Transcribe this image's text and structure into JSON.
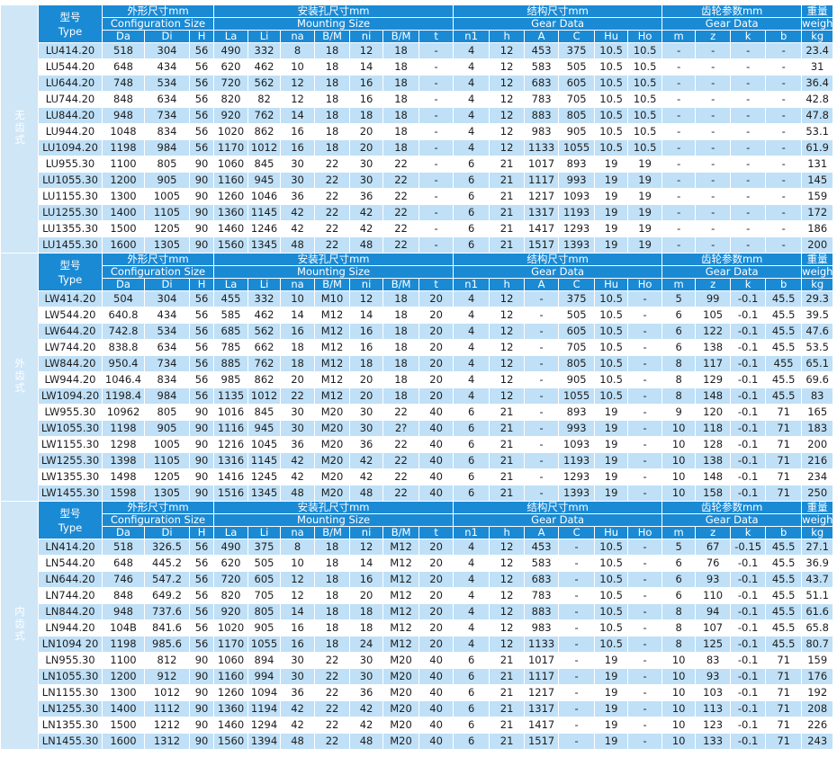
{
  "header": {
    "type": {
      "zh": "型号",
      "en": "Type"
    },
    "groups": [
      {
        "zh": "外形尺寸mm",
        "en": "Configuration Size",
        "cols": [
          "Da",
          "Di",
          "H"
        ]
      },
      {
        "zh": "安装孔尺寸mm",
        "en": "Mounting Size",
        "cols": [
          "La",
          "Li",
          "na",
          "B/M",
          "ni",
          "B/M",
          "t"
        ]
      },
      {
        "zh": "结构尺寸mm",
        "en": "Gear Data",
        "cols": [
          "n1",
          "h",
          "A",
          "C",
          "Hu",
          "Ho"
        ]
      },
      {
        "zh": "齿轮参数mm",
        "en": "Gear Data",
        "cols": [
          "m",
          "z",
          "k",
          "b"
        ]
      }
    ],
    "weight": {
      "zh": "重量",
      "en": "weight",
      "unit": "kg"
    }
  },
  "sections": [
    {
      "label": "无齿式",
      "rows": [
        [
          "LU414.20",
          "518",
          "304",
          "56",
          "490",
          "332",
          "8",
          "18",
          "12",
          "18",
          "-",
          "4",
          "12",
          "453",
          "375",
          "10.5",
          "10.5",
          "-",
          "-",
          "-",
          "-",
          "23.4"
        ],
        [
          "LU544.20",
          "648",
          "434",
          "56",
          "620",
          "462",
          "10",
          "18",
          "14",
          "18",
          "-",
          "4",
          "12",
          "583",
          "505",
          "10.5",
          "10.5",
          "-",
          "-",
          "-",
          "-",
          "31"
        ],
        [
          "LU644.20",
          "748",
          "534",
          "56",
          "720",
          "562",
          "12",
          "18",
          "16",
          "18",
          "-",
          "4",
          "12",
          "683",
          "605",
          "10.5",
          "10.5",
          "-",
          "-",
          "-",
          "-",
          "36.4"
        ],
        [
          "LU744.20",
          "848",
          "634",
          "56",
          "820",
          "82",
          "12",
          "18",
          "16",
          "18",
          "-",
          "4",
          "12",
          "783",
          "705",
          "10.5",
          "10.5",
          "-",
          "-",
          "-",
          "-",
          "42.8"
        ],
        [
          "LU844.20",
          "948",
          "734",
          "56",
          "920",
          "762",
          "14",
          "18",
          "18",
          "18",
          "-",
          "4",
          "12",
          "883",
          "805",
          "10.5",
          "10.5",
          "-",
          "-",
          "-",
          "-",
          "47.8"
        ],
        [
          "LU944.20",
          "1048",
          "834",
          "56",
          "1020",
          "862",
          "16",
          "18",
          "20",
          "18",
          "-",
          "4",
          "12",
          "983",
          "905",
          "10.5",
          "10.5",
          "-",
          "-",
          "-",
          "-",
          "53.1"
        ],
        [
          "LU1094.20",
          "1198",
          "984",
          "56",
          "1170",
          "1012",
          "16",
          "18",
          "20",
          "18",
          "-",
          "4",
          "12",
          "1133",
          "1055",
          "10.5",
          "10.5",
          "-",
          "-",
          "-",
          "-",
          "61.9"
        ],
        [
          "LU955.30",
          "1100",
          "805",
          "90",
          "1060",
          "845",
          "30",
          "22",
          "30",
          "22",
          "-",
          "6",
          "21",
          "1017",
          "893",
          "19",
          "19",
          "-",
          "-",
          "-",
          "-",
          "131"
        ],
        [
          "LU1055.30",
          "1200",
          "905",
          "90",
          "1160",
          "945",
          "30",
          "22",
          "30",
          "22",
          "-",
          "6",
          "21",
          "1117",
          "993",
          "19",
          "19",
          "-",
          "-",
          "-",
          "-",
          "145"
        ],
        [
          "LU1155.30",
          "1300",
          "1005",
          "90",
          "1260",
          "1046",
          "36",
          "22",
          "36",
          "22",
          "-",
          "6",
          "21",
          "1217",
          "1093",
          "19",
          "19",
          "-",
          "-",
          "-",
          "-",
          "159"
        ],
        [
          "LU1255.30",
          "1400",
          "1105",
          "90",
          "1360",
          "1145",
          "42",
          "22",
          "42",
          "22",
          "-",
          "6",
          "21",
          "1317",
          "1193",
          "19",
          "19",
          "-",
          "-",
          "-",
          "-",
          "172"
        ],
        [
          "LU1355.30",
          "1500",
          "1205",
          "90",
          "1460",
          "1246",
          "42",
          "22",
          "42",
          "22",
          "-",
          "6",
          "21",
          "1417",
          "1293",
          "19",
          "19",
          "-",
          "-",
          "-",
          "-",
          "186"
        ],
        [
          "LU1455.30",
          "1600",
          "1305",
          "90",
          "1560",
          "1345",
          "48",
          "22",
          "48",
          "22",
          "-",
          "6",
          "21",
          "1517",
          "1393",
          "19",
          "19",
          "-",
          "-",
          "-",
          "-",
          "200"
        ]
      ]
    },
    {
      "label": "外齿式",
      "rows": [
        [
          "LW414.20",
          "504",
          "304",
          "56",
          "455",
          "332",
          "10",
          "M10",
          "12",
          "18",
          "20",
          "4",
          "12",
          "-",
          "375",
          "10.5",
          "-",
          "5",
          "99",
          "-0.1",
          "45.5",
          "29.3"
        ],
        [
          "LW544.20",
          "640.8",
          "434",
          "56",
          "585",
          "462",
          "14",
          "M12",
          "14",
          "18",
          "20",
          "4",
          "12",
          "-",
          "505",
          "10.5",
          "-",
          "6",
          "105",
          "-0.1",
          "45.5",
          "39.5"
        ],
        [
          "LW644.20",
          "742.8",
          "534",
          "56",
          "685",
          "562",
          "16",
          "M12",
          "16",
          "18",
          "20",
          "4",
          "12",
          "-",
          "605",
          "10.5",
          "-",
          "6",
          "122",
          "-0.1",
          "45.5",
          "47.6"
        ],
        [
          "LW744.20",
          "838.8",
          "634",
          "56",
          "785",
          "662",
          "18",
          "M12",
          "16",
          "18",
          "20",
          "4",
          "12",
          "-",
          "705",
          "10.5",
          "-",
          "6",
          "138",
          "-0.1",
          "45.5",
          "53.5"
        ],
        [
          "LW844.20",
          "950.4",
          "734",
          "56",
          "885",
          "762",
          "18",
          "M12",
          "18",
          "18",
          "20",
          "4",
          "12",
          "-",
          "805",
          "10.5",
          "-",
          "8",
          "117",
          "-0.1",
          "455",
          "65.1"
        ],
        [
          "LW944.20",
          "1046.4",
          "834",
          "56",
          "985",
          "862",
          "20",
          "M12",
          "20",
          "18",
          "20",
          "4",
          "12",
          "-",
          "905",
          "10.5",
          "-",
          "8",
          "129",
          "-0.1",
          "45.5",
          "69.6"
        ],
        [
          "LW1094.20",
          "1198.4",
          "984",
          "56",
          "1135",
          "1012",
          "22",
          "M12",
          "20",
          "18",
          "20",
          "4",
          "12",
          "-",
          "1055",
          "10.5",
          "-",
          "8",
          "148",
          "-0.1",
          "45.5",
          "83"
        ],
        [
          "LW955.30",
          "10962",
          "805",
          "90",
          "1016",
          "845",
          "30",
          "M20",
          "30",
          "22",
          "40",
          "6",
          "21",
          "-",
          "893",
          "19",
          "-",
          "9",
          "120",
          "-0.1",
          "71",
          "165"
        ],
        [
          "LW1055.30",
          "1198",
          "905",
          "90",
          "1116",
          "945",
          "30",
          "M20",
          "30",
          "2?",
          "40",
          "6",
          "21",
          "-",
          "993",
          "19",
          "-",
          "10",
          "118",
          "-0.1",
          "71",
          "183"
        ],
        [
          "LW1155.30",
          "1298",
          "1005",
          "90",
          "1216",
          "1045",
          "36",
          "M20",
          "36",
          "22",
          "40",
          "6",
          "21",
          "-",
          "1093",
          "19",
          "-",
          "10",
          "128",
          "-0.1",
          "71",
          "200"
        ],
        [
          "LW1255.30",
          "1398",
          "1105",
          "90",
          "1316",
          "1145",
          "42",
          "M20",
          "42",
          "22",
          "40",
          "6",
          "21",
          "-",
          "1193",
          "19",
          "-",
          "10",
          "138",
          "-0.1",
          "71",
          "216"
        ],
        [
          "LW1355.30",
          "1498",
          "1205",
          "90",
          "1416",
          "1245",
          "42",
          "M20",
          "42",
          "22",
          "40",
          "6",
          "21",
          "-",
          "1293",
          "19",
          "-",
          "10",
          "148",
          "-0.1",
          "71",
          "234"
        ],
        [
          "LW1455.30",
          "1598",
          "1305",
          "90",
          "1516",
          "1345",
          "48",
          "M20",
          "48",
          "22",
          "40",
          "6",
          "21",
          "-",
          "1393",
          "19",
          "-",
          "10",
          "158",
          "-0.1",
          "71",
          "250"
        ]
      ]
    },
    {
      "label": "内齿式",
      "rows": [
        [
          "LN414.20",
          "518",
          "326.5",
          "56",
          "490",
          "375",
          "8",
          "18",
          "12",
          "M12",
          "20",
          "4",
          "12",
          "453",
          "-",
          "10.5",
          "-",
          "5",
          "67",
          "-0.15",
          "45.5",
          "27.1"
        ],
        [
          "LN544.20",
          "648",
          "445.2",
          "56",
          "620",
          "505",
          "10",
          "18",
          "14",
          "M12",
          "20",
          "4",
          "12",
          "583",
          "-",
          "10.5",
          "-",
          "6",
          "76",
          "-0.1",
          "45.5",
          "36.9"
        ],
        [
          "LN644.20",
          "746",
          "547.2",
          "56",
          "720",
          "605",
          "12",
          "18",
          "16",
          "M12",
          "20",
          "4",
          "12",
          "683",
          "-",
          "10.5",
          "-",
          "6",
          "93",
          "-0.1",
          "45.5",
          "43.7"
        ],
        [
          "LN744.20",
          "848",
          "649.2",
          "56",
          "820",
          "705",
          "12",
          "18",
          "20",
          "M12",
          "20",
          "4",
          "12",
          "783",
          "-",
          "10.5",
          "-",
          "6",
          "110",
          "-0.1",
          "45.5",
          "51.1"
        ],
        [
          "LN844.20",
          "948",
          "737.6",
          "56",
          "920",
          "805",
          "14",
          "18",
          "18",
          "M12",
          "20",
          "4",
          "12",
          "883",
          "-",
          "10.5",
          "-",
          "8",
          "94",
          "-0.1",
          "45.5",
          "61.6"
        ],
        [
          "LN944.20",
          "104B",
          "841.6",
          "56",
          "1020",
          "905",
          "16",
          "18",
          "18",
          "M12",
          "20",
          "4",
          "12",
          "983",
          "-",
          "10.5",
          "-",
          "8",
          "107",
          "-0.1",
          "45.5",
          "65.8"
        ],
        [
          "LN1094 20",
          "1198",
          "985.6",
          "56",
          "1170",
          "1055",
          "16",
          "18",
          "24",
          "M12",
          "20",
          "4",
          "12",
          "1133",
          "-",
          "10.5",
          "-",
          "8",
          "125",
          "-0.1",
          "45.5",
          "80.7"
        ],
        [
          "LN955.30",
          "1100",
          "812",
          "90",
          "1060",
          "894",
          "30",
          "22",
          "30",
          "M20",
          "40",
          "6",
          "21",
          "1017",
          "-",
          "19",
          "-",
          "10",
          "83",
          "-0.1",
          "71",
          "159"
        ],
        [
          "LN1055.30",
          "1200",
          "912",
          "90",
          "1160",
          "994",
          "30",
          "22",
          "30",
          "M20",
          "40",
          "6",
          "21",
          "1117",
          "-",
          "19",
          "-",
          "10",
          "93",
          "-0.1",
          "71",
          "176"
        ],
        [
          "LN1155.30",
          "1300",
          "1012",
          "90",
          "1260",
          "1094",
          "36",
          "22",
          "36",
          "M20",
          "40",
          "6",
          "21",
          "1217",
          "-",
          "19",
          "-",
          "10",
          "103",
          "-0.1",
          "71",
          "192"
        ],
        [
          "LN1255.30",
          "1400",
          "1112",
          "90",
          "1360",
          "1194",
          "42",
          "22",
          "42",
          "M20",
          "40",
          "6",
          "21",
          "1317",
          "-",
          "19",
          "-",
          "10",
          "113",
          "-0.1",
          "71",
          "208"
        ],
        [
          "LN1355.30",
          "1500",
          "1212",
          "90",
          "1460",
          "1294",
          "42",
          "22",
          "42",
          "M20",
          "40",
          "6",
          "21",
          "1417",
          "-",
          "19",
          "-",
          "10",
          "123",
          "-0.1",
          "71",
          "226"
        ],
        [
          "LN1455.30",
          "1600",
          "1312",
          "90",
          "1560",
          "1394",
          "48",
          "22",
          "48",
          "M20",
          "40",
          "6",
          "21",
          "1517",
          "-",
          "19",
          "-",
          "10",
          "133",
          "-0.1",
          "71",
          "243"
        ]
      ]
    }
  ]
}
